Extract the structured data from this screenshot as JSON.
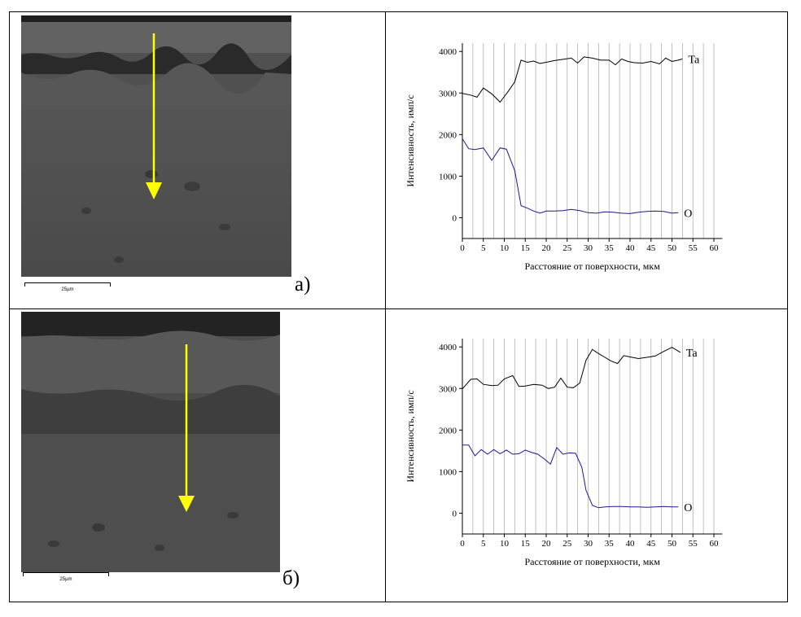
{
  "panels": [
    {
      "label": "а)",
      "scale_text": "25µm"
    },
    {
      "label": "б)",
      "scale_text": "25µm"
    }
  ],
  "colors": {
    "ta_line": "#000000",
    "o_line": "#1a1a8c",
    "arrow": "#ffff00"
  },
  "chart_data": [
    {
      "type": "line",
      "xlabel": "Расстояние от поверхности, мкм",
      "ylabel": "Интенсивность, имп/с",
      "xlim": [
        0,
        62
      ],
      "ylim": [
        -500,
        4200
      ],
      "xticks": [
        0,
        5,
        10,
        15,
        20,
        25,
        30,
        35,
        40,
        45,
        50,
        55,
        60
      ],
      "yticks": [
        0,
        1000,
        2000,
        3000,
        4000
      ],
      "grid": "vertical",
      "series": [
        {
          "name": "Ta",
          "x": [
            0,
            2,
            3.5,
            5,
            7,
            9,
            11,
            12.5,
            14,
            15.5,
            17,
            18.5,
            20,
            22,
            24,
            26,
            27.5,
            29,
            31,
            33,
            35,
            36.5,
            38,
            39.5,
            41,
            43,
            45,
            47,
            48.5,
            50,
            51.5,
            52.5
          ],
          "y": [
            2990,
            2950,
            2900,
            3120,
            2980,
            2780,
            3050,
            3270,
            3790,
            3740,
            3770,
            3710,
            3740,
            3780,
            3810,
            3840,
            3720,
            3870,
            3840,
            3790,
            3790,
            3680,
            3820,
            3760,
            3730,
            3720,
            3760,
            3700,
            3840,
            3760,
            3790,
            3820
          ]
        },
        {
          "name": "O",
          "x": [
            0,
            1.5,
            3,
            5,
            7,
            9,
            10.5,
            12.5,
            14,
            15.5,
            17,
            18.5,
            20,
            22,
            24,
            26,
            28,
            30,
            32,
            34,
            36,
            38,
            40,
            42,
            44,
            46,
            48,
            50,
            51.5
          ],
          "y": [
            1900,
            1660,
            1640,
            1680,
            1380,
            1680,
            1650,
            1130,
            290,
            230,
            160,
            110,
            160,
            160,
            170,
            200,
            170,
            120,
            110,
            140,
            130,
            110,
            100,
            130,
            150,
            160,
            150,
            110,
            120
          ]
        }
      ],
      "annotations": [
        "Ta",
        "O"
      ]
    },
    {
      "type": "line",
      "xlabel": "Расстояние от поверхности, мкм",
      "ylabel": "Интенсивность, имп/с",
      "xlim": [
        0,
        62
      ],
      "ylim": [
        -500,
        4200
      ],
      "xticks": [
        0,
        5,
        10,
        15,
        20,
        25,
        30,
        35,
        40,
        45,
        50,
        55,
        60
      ],
      "yticks": [
        0,
        1000,
        2000,
        3000,
        4000
      ],
      "grid": "vertical",
      "series": [
        {
          "name": "Ta",
          "x": [
            0,
            2,
            3.5,
            5,
            7,
            8.5,
            10,
            12,
            13.5,
            15,
            17,
            19,
            20.5,
            22,
            23.5,
            25,
            26.5,
            28,
            29.5,
            31,
            32.5,
            34,
            35.5,
            37,
            38.5,
            40,
            42,
            44,
            46,
            48,
            50,
            52
          ],
          "y": [
            2990,
            3220,
            3230,
            3100,
            3070,
            3080,
            3230,
            3310,
            3050,
            3060,
            3100,
            3080,
            3000,
            3030,
            3250,
            3030,
            3020,
            3130,
            3680,
            3940,
            3840,
            3750,
            3660,
            3600,
            3790,
            3760,
            3720,
            3750,
            3780,
            3890,
            3990,
            3870
          ]
        },
        {
          "name": "O",
          "x": [
            0,
            1.5,
            3,
            4.5,
            6,
            7.5,
            9,
            10.5,
            12,
            13.5,
            15,
            16.5,
            18,
            19.5,
            21,
            22.5,
            24,
            25.5,
            27,
            28.5,
            29.5,
            31,
            32.5,
            34,
            36,
            38,
            40,
            42,
            44,
            46,
            48,
            50,
            51.5
          ],
          "y": [
            1640,
            1640,
            1380,
            1530,
            1420,
            1530,
            1430,
            1520,
            1420,
            1430,
            1520,
            1460,
            1420,
            1310,
            1180,
            1580,
            1420,
            1450,
            1440,
            1100,
            550,
            190,
            130,
            150,
            160,
            160,
            150,
            150,
            140,
            150,
            160,
            150,
            150
          ]
        }
      ],
      "annotations": [
        "Ta",
        "O"
      ]
    }
  ]
}
